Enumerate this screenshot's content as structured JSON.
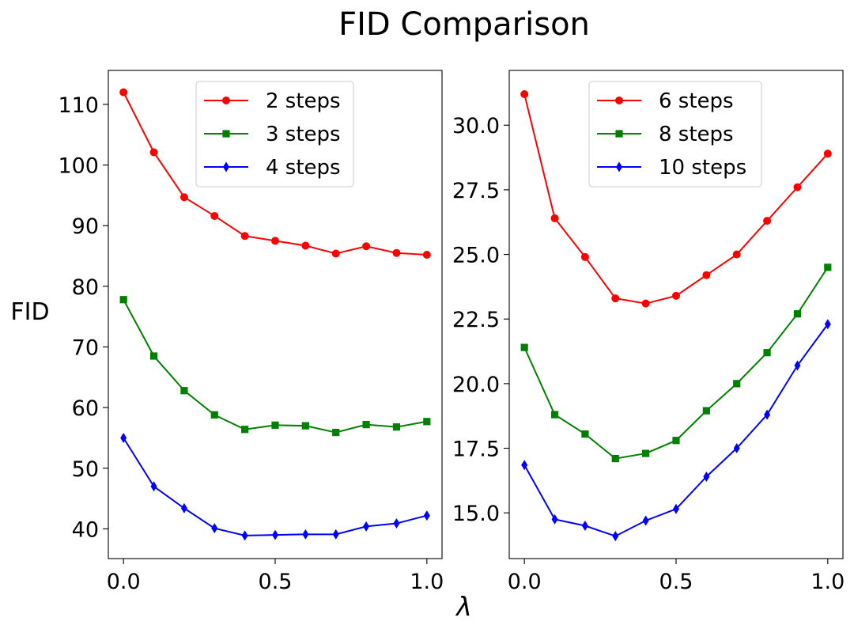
{
  "figure": {
    "title": "FID Comparison",
    "xlabel": "λ",
    "ylabel": "FID"
  },
  "chart_data": [
    {
      "type": "line",
      "x": [
        0.0,
        0.1,
        0.2,
        0.3,
        0.4,
        0.5,
        0.6,
        0.7,
        0.8,
        0.9,
        1.0
      ],
      "xlim": [
        -0.05,
        1.05
      ],
      "ylim": [
        35.1,
        115.6
      ],
      "xticks": [
        0.0,
        0.5,
        1.0
      ],
      "xtick_labels": [
        "0.0",
        "0.5",
        "1.0"
      ],
      "yticks": [
        40,
        50,
        60,
        70,
        80,
        90,
        100,
        110
      ],
      "ytick_labels": [
        "40",
        "50",
        "60",
        "70",
        "80",
        "90",
        "100",
        "110"
      ],
      "grid": false,
      "legend": "top-center",
      "series": [
        {
          "name": "2 steps",
          "color": "#ff0000",
          "marker": "circle",
          "values": [
            112.0,
            102.1,
            94.7,
            91.6,
            88.3,
            87.5,
            86.7,
            85.4,
            86.6,
            85.5,
            85.2
          ]
        },
        {
          "name": "3 steps",
          "color": "#008000",
          "marker": "square",
          "values": [
            77.8,
            68.5,
            62.8,
            58.8,
            56.4,
            57.1,
            57.0,
            55.9,
            57.2,
            56.8,
            57.7
          ]
        },
        {
          "name": "4 steps",
          "color": "#0000ff",
          "marker": "thin_diamond",
          "values": [
            55.0,
            47.0,
            43.4,
            40.1,
            38.9,
            39.0,
            39.1,
            39.1,
            40.4,
            40.9,
            42.2
          ]
        }
      ]
    },
    {
      "type": "line",
      "x": [
        0.0,
        0.1,
        0.2,
        0.3,
        0.4,
        0.5,
        0.6,
        0.7,
        0.8,
        0.9,
        1.0
      ],
      "xlim": [
        -0.05,
        1.05
      ],
      "ylim": [
        13.23,
        32.12
      ],
      "xticks": [
        0.0,
        0.5,
        1.0
      ],
      "xtick_labels": [
        "0.0",
        "0.5",
        "1.0"
      ],
      "yticks": [
        15.0,
        17.5,
        20.0,
        22.5,
        25.0,
        27.5,
        30.0
      ],
      "ytick_labels": [
        "15.0",
        "17.5",
        "20.0",
        "22.5",
        "25.0",
        "27.5",
        "30.0"
      ],
      "grid": false,
      "legend": "top-center",
      "series": [
        {
          "name": "6 steps",
          "color": "#ff0000",
          "marker": "circle",
          "values": [
            31.2,
            26.4,
            24.9,
            23.3,
            23.1,
            23.4,
            24.2,
            25.0,
            26.3,
            27.6,
            28.9
          ]
        },
        {
          "name": "8 steps",
          "color": "#008000",
          "marker": "square",
          "values": [
            21.4,
            18.8,
            18.05,
            17.1,
            17.3,
            17.8,
            18.95,
            20.0,
            21.2,
            22.7,
            24.5
          ]
        },
        {
          "name": "10 steps",
          "color": "#0000ff",
          "marker": "thin_diamond",
          "values": [
            16.85,
            14.75,
            14.5,
            14.1,
            14.7,
            15.15,
            16.4,
            17.5,
            18.8,
            20.7,
            22.3
          ]
        }
      ]
    }
  ]
}
